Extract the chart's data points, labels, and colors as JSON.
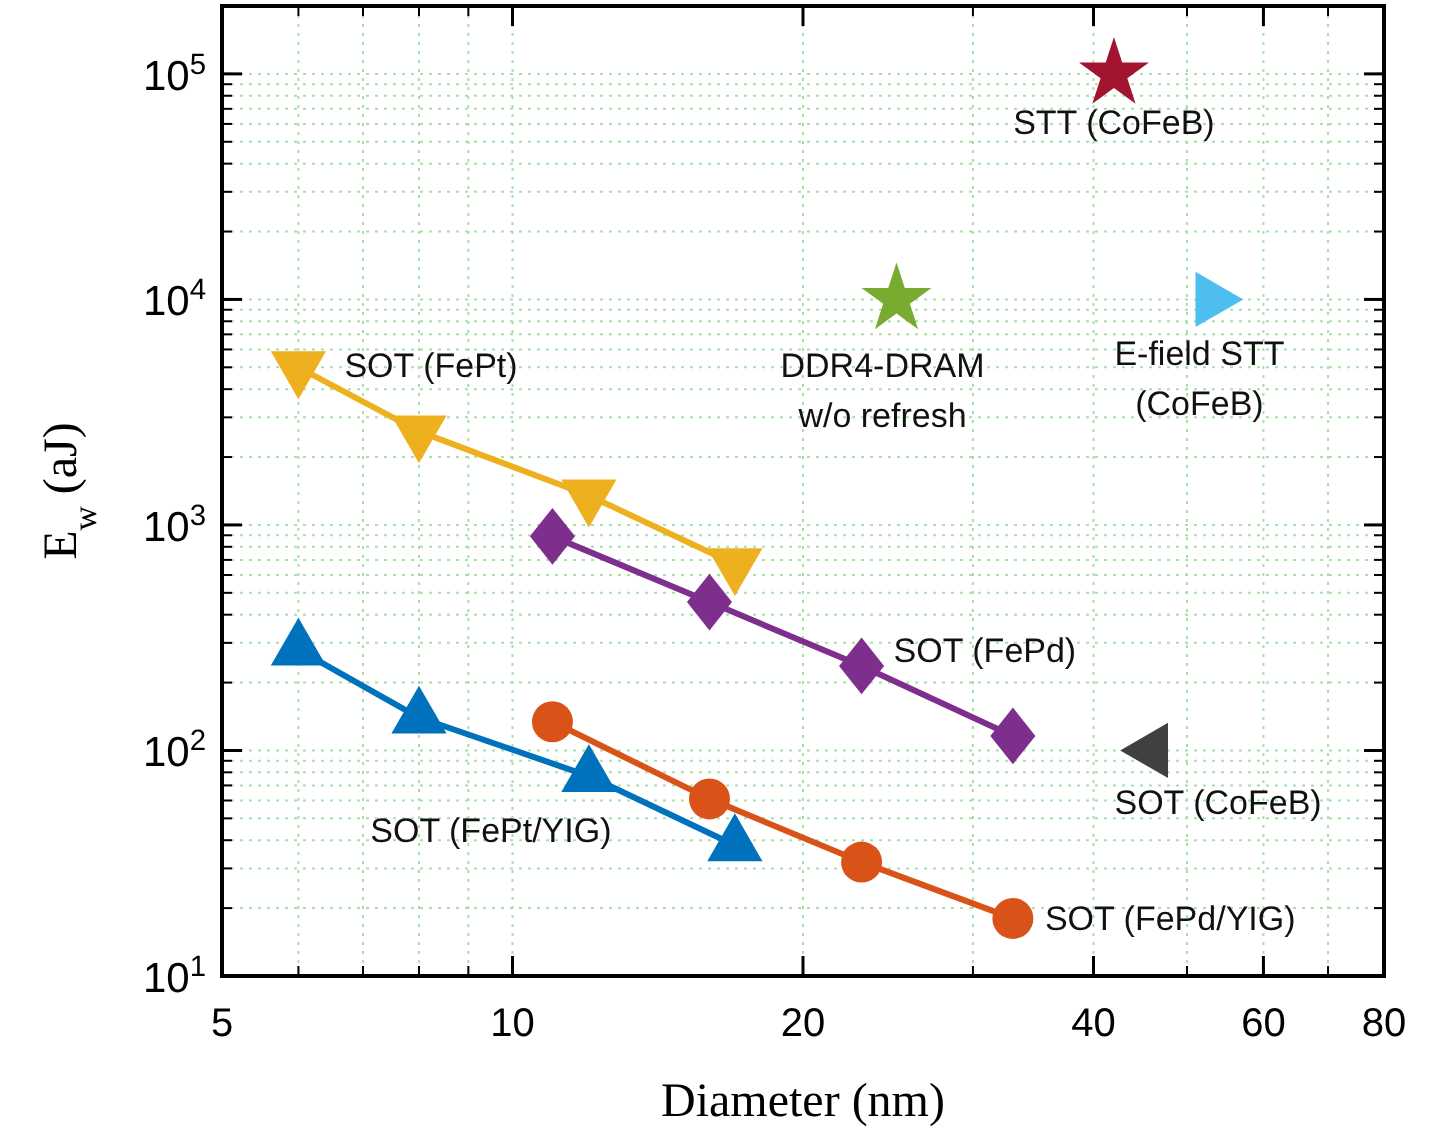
{
  "chart_data": {
    "type": "line",
    "xlabel": "Diameter (nm)",
    "ylabel": "E$_{w}$ (aJ)",
    "log": "xy",
    "grid": true,
    "xlim": [
      5,
      80
    ],
    "xticks": [
      5,
      10,
      20,
      40,
      60,
      80
    ],
    "ylim": [
      10,
      200000
    ],
    "yticks": [
      {
        "value": 10,
        "label": "10$^{1}$"
      },
      {
        "value": 100,
        "label": "10$^{2}$"
      },
      {
        "value": 1000,
        "label": "10$^{3}$"
      },
      {
        "value": 10000,
        "label": "10$^{4}$"
      },
      {
        "value": 100000,
        "label": "10$^{5}$"
      }
    ],
    "series": [
      {
        "name": "SOT (FePt)",
        "color": "#edb120",
        "marker": "triangle-down",
        "x": [
          6,
          8,
          12,
          17
        ],
        "values": [
          5000,
          2600,
          1350,
          670
        ]
      },
      {
        "name": "SOT (FePd)",
        "color": "#7e2f8e",
        "marker": "diamond",
        "x": [
          11,
          16,
          23,
          33
        ],
        "values": [
          890,
          455,
          237,
          116
        ]
      },
      {
        "name": "SOT (FePt/YIG)",
        "color": "#0072bd",
        "marker": "triangle",
        "x": [
          6,
          8,
          12,
          17
        ],
        "values": [
          280,
          140,
          77,
          38
        ]
      },
      {
        "name": "SOT (FePd/YIG)",
        "color": "#d95319",
        "marker": "circle",
        "x": [
          11,
          16,
          23,
          33
        ],
        "values": [
          134,
          61,
          32,
          18
        ]
      },
      {
        "type": "scatter",
        "name": "STT (CoFeB)",
        "color": "#a2142f",
        "marker": "star",
        "x": [
          42
        ],
        "values": [
          100000
        ]
      },
      {
        "type": "scatter",
        "name": "DDR4-DRAM\nw/o refresh",
        "color": "#77ac30",
        "marker": "star",
        "x": [
          25
        ],
        "values": [
          10000
        ]
      },
      {
        "type": "scatter",
        "name": "E-field STT\n(CoFeB)",
        "color": "#4dbeee",
        "marker": "triangle-right",
        "x": [
          53
        ],
        "values": [
          10000
        ]
      },
      {
        "type": "scatter",
        "name": "SOT (CoFeB)",
        "color": "#404040",
        "marker": "triangle-left",
        "x": [
          46
        ],
        "values": [
          100
        ]
      }
    ]
  }
}
